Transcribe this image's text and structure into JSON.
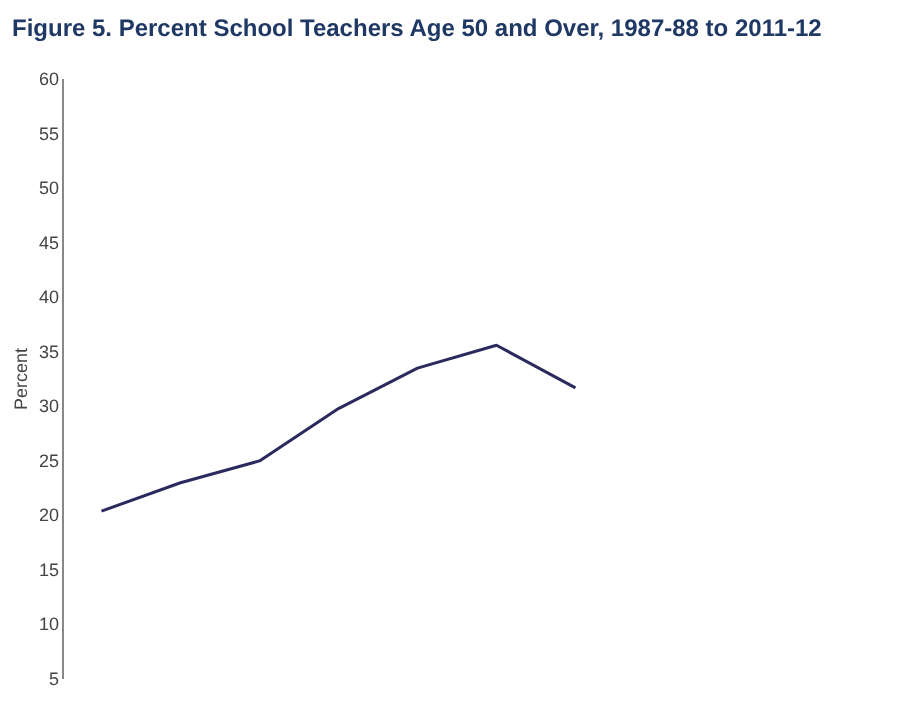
{
  "chart_data": {
    "type": "line",
    "title": "Figure 5. Percent School Teachers Age 50 and Over, 1987-88 to 2011-12",
    "ylabel": "Percent",
    "categories": [
      null,
      null,
      null,
      null,
      null,
      null,
      null
    ],
    "series": [
      {
        "color": "#2b2a5e",
        "values": [
          20.3,
          22.9,
          24.9,
          29.7,
          33.4,
          35.5,
          31.6
        ]
      }
    ],
    "ylim": [
      5,
      60
    ],
    "yticks": [
      5,
      10,
      15,
      20,
      25,
      30,
      35,
      40,
      45,
      50,
      55,
      60
    ],
    "grid": false,
    "tick_labels": "y",
    "marker": "none",
    "line_style": "solid"
  }
}
